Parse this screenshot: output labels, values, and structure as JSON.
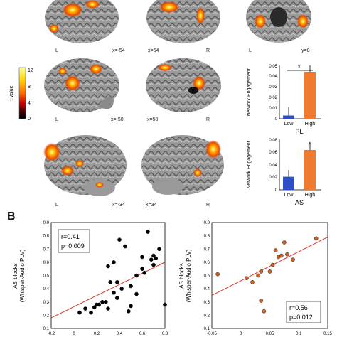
{
  "colorbar": {
    "label": "t-value",
    "ticks": [
      "12",
      "8",
      "4",
      "0"
    ],
    "colors": [
      "#ffff99",
      "#ffd000",
      "#ff6a00",
      "#c40000",
      "#3a0000",
      "#000000"
    ]
  },
  "brains": {
    "row1": {
      "left": "L",
      "x_left": "x=-54",
      "x_right": "x=54",
      "right": "R",
      "coronal_l": "L",
      "coronal_y": "y=8"
    },
    "row2": {
      "left": "L",
      "x_left": "x=-50",
      "x_right": "x=50",
      "right": "R"
    },
    "row3": {
      "left": "L",
      "x_left": "x=-34",
      "x_right": "x=34",
      "right": "R"
    }
  },
  "bar_charts": [
    {
      "ylabel": "Network Engagement",
      "yticks": [
        "0",
        "0.01",
        "0.02",
        "0.03",
        "0.04",
        "0.05"
      ],
      "categories": [
        "Low",
        "High"
      ],
      "group_label": "PL",
      "significance": "*"
    },
    {
      "ylabel": "Network Engagement",
      "yticks": [
        "0",
        "0.02",
        "0.04",
        "0.06",
        "0.08"
      ],
      "categories": [
        "Low",
        "High"
      ],
      "group_label": "AS",
      "significance": "*"
    }
  ],
  "panel_b": {
    "letter": "B",
    "scatters": [
      {
        "ylabel_1": "AS blocks",
        "ylabel_2": "(Whisper-Audio PLV)",
        "yticks": [
          "0.1",
          "0.2",
          "0.3",
          "0.4",
          "0.5",
          "0.6",
          "0.7",
          "0.8",
          "0.9"
        ],
        "xticks": [
          "-0.2",
          "0",
          "0.2",
          "0.4",
          "0.6",
          "0.8"
        ],
        "stat_r": "r=0.41",
        "stat_p": "p=0.009"
      },
      {
        "ylabel_1": "AS blocks",
        "ylabel_2": "(Whisper-Audio PLV)",
        "yticks": [
          "0.1",
          "0.2",
          "0.3",
          "0.4",
          "0.5",
          "0.6",
          "0.7",
          "0.8",
          "0.9"
        ],
        "xticks": [
          "-0.05",
          "0",
          "0.05",
          "0.1",
          "0.15"
        ],
        "stat_r": "r=0.56",
        "stat_p": "p=0.012"
      }
    ]
  },
  "chart_data": [
    {
      "type": "bar",
      "title": "",
      "xlabel": "PL",
      "ylabel": "Network Engagement",
      "categories": [
        "Low",
        "High"
      ],
      "values": [
        0.003,
        0.044
      ],
      "errors": [
        0.008,
        0.006
      ],
      "colors": [
        "#2f4fc4",
        "#f07a2e"
      ],
      "ylim": [
        0,
        0.05
      ]
    },
    {
      "type": "bar",
      "title": "",
      "xlabel": "AS",
      "ylabel": "Network Engagement",
      "categories": [
        "Low",
        "High"
      ],
      "values": [
        0.021,
        0.064
      ],
      "errors": [
        0.011,
        0.011
      ],
      "colors": [
        "#2f4fc4",
        "#f07a2e"
      ],
      "ylim": [
        0,
        0.08
      ]
    },
    {
      "type": "scatter",
      "title": "",
      "xlabel": "",
      "ylabel": "AS blocks (Whisper-Audio PLV)",
      "xlim": [
        -0.2,
        0.8
      ],
      "ylim": [
        0.1,
        0.9
      ],
      "marker_color": "#000000",
      "fit_color": "#d9342b",
      "fit": [
        [
          -0.2,
          0.18
        ],
        [
          0.8,
          0.6
        ]
      ],
      "x": [
        0.05,
        0.1,
        0.15,
        0.2,
        0.25,
        0.3,
        0.35,
        0.38,
        0.42,
        0.48,
        0.5,
        0.55,
        0.6,
        0.65,
        0.7,
        0.72,
        0.75,
        0.8,
        0.3,
        0.4,
        0.45,
        0.35,
        0.28,
        0.32,
        0.22,
        0.18,
        0.6,
        0.55,
        0.5,
        0.38,
        0.62,
        0.68,
        0.7
      ],
      "y": [
        0.22,
        0.25,
        0.22,
        0.28,
        0.3,
        0.25,
        0.37,
        0.33,
        0.4,
        0.23,
        0.27,
        0.36,
        0.55,
        0.83,
        0.65,
        0.63,
        0.7,
        0.28,
        0.57,
        0.77,
        0.72,
        0.6,
        0.3,
        0.45,
        0.28,
        0.26,
        0.64,
        0.5,
        0.42,
        0.45,
        0.52,
        0.62,
        0.58
      ]
    },
    {
      "type": "scatter",
      "title": "",
      "xlabel": "",
      "ylabel": "AS blocks (Whisper-Audio PLV)",
      "xlim": [
        -0.05,
        0.15
      ],
      "ylim": [
        0.1,
        0.9
      ],
      "marker_color": "#c8642a",
      "fit_color": "#d9342b",
      "fit": [
        [
          -0.05,
          0.35
        ],
        [
          0.15,
          0.79
        ]
      ],
      "x": [
        -0.04,
        0.01,
        0.02,
        0.03,
        0.035,
        0.04,
        0.05,
        0.055,
        0.06,
        0.065,
        0.07,
        0.08,
        0.09,
        0.13,
        0.035,
        0.075
      ],
      "y": [
        0.51,
        0.48,
        0.45,
        0.5,
        0.53,
        0.23,
        0.53,
        0.58,
        0.69,
        0.64,
        0.65,
        0.66,
        0.62,
        0.78,
        0.31,
        0.75
      ]
    }
  ]
}
